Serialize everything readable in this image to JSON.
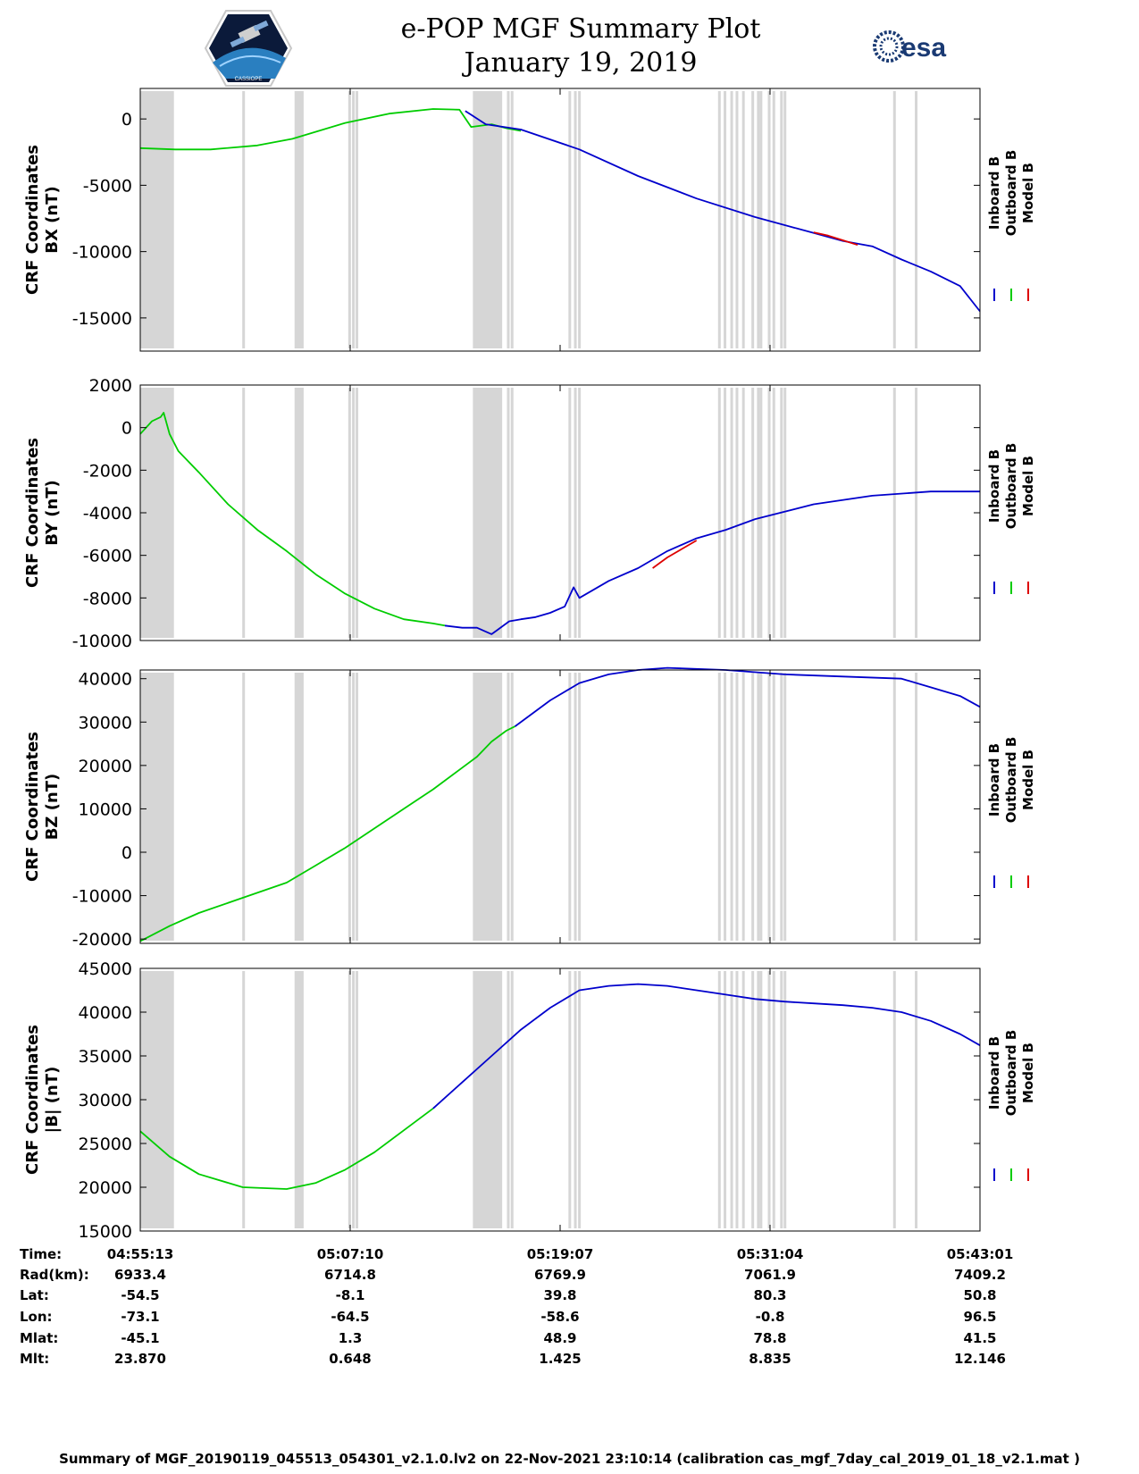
{
  "header": {
    "title": "e-POP MGF Summary Plot",
    "date": "January 19, 2019",
    "logo_left_text": "CASSIOPE",
    "logo_right_text": "esa"
  },
  "colors": {
    "inboard": "#0000cc",
    "outboard": "#00cc00",
    "model": "#dd0000",
    "gap": "#d6d6d6"
  },
  "legend": {
    "inboard": "Inboard B",
    "outboard": "Outboard B",
    "model": "Model B"
  },
  "time_axis": {
    "start": "04:55:13",
    "end": "05:43:01",
    "span_seconds": 2868,
    "ticks_seconds": [
      0,
      717,
      1434,
      2151,
      2868
    ],
    "gap_bands_seconds": [
      [
        0,
        115
      ],
      [
        527,
        558
      ],
      [
        1136,
        1236
      ]
    ],
    "gap_lines_seconds": [
      353,
      715,
      728,
      740,
      1257,
      1270,
      1467,
      1486,
      1500,
      1978,
      1997,
      2020,
      2038,
      2060,
      2092,
      2111,
      2120,
      2148,
      2164,
      2190,
      2202,
      2576,
      2650
    ]
  },
  "chart_data": [
    {
      "type": "line",
      "ylabel": "CRF Coordinates\nBX (nT)",
      "ylim": [
        -17500,
        2300
      ],
      "yticks": [
        0,
        -5000,
        -10000,
        -15000
      ],
      "tick_labels": [
        "0",
        "-5000",
        "-10000",
        "-15000"
      ],
      "series": [
        {
          "name": "Outboard B",
          "x": [
            0,
            120,
            240,
            400,
            520,
            700,
            850,
            1000,
            1090,
            1130,
            1200,
            1250,
            1300
          ],
          "y": [
            -2200,
            -2300,
            -2300,
            -2000,
            -1500,
            -300,
            400,
            750,
            700,
            -600,
            -400,
            -700,
            -900
          ]
        },
        {
          "name": "Inboard B",
          "x": [
            1110,
            1180,
            1300,
            1500,
            1700,
            1900,
            2100,
            2300,
            2400,
            2500,
            2600,
            2700,
            2800,
            2868
          ],
          "y": [
            600,
            -400,
            -800,
            -2300,
            -4300,
            -6000,
            -7400,
            -8600,
            -9200,
            -9600,
            -10600,
            -11500,
            -12600,
            -14500
          ]
        },
        {
          "name": "Model B",
          "x": [
            2300,
            2350,
            2400,
            2450
          ],
          "y": [
            -8550,
            -8800,
            -9150,
            -9500
          ]
        }
      ]
    },
    {
      "type": "line",
      "ylabel": "CRF Coordinates\nBY (nT)",
      "ylim": [
        -10000,
        2000
      ],
      "yticks": [
        2000,
        0,
        -2000,
        -4000,
        -6000,
        -8000,
        -10000
      ],
      "tick_labels": [
        "2000",
        "0",
        "-2000",
        "-4000",
        "-6000",
        "-8000",
        "-10000"
      ],
      "series": [
        {
          "name": "Outboard B",
          "x": [
            0,
            40,
            70,
            80,
            100,
            130,
            200,
            300,
            400,
            500,
            600,
            700,
            800,
            900,
            1000,
            1040
          ],
          "y": [
            -300,
            300,
            500,
            700,
            -300,
            -1100,
            -2100,
            -3600,
            -4800,
            -5800,
            -6900,
            -7800,
            -8500,
            -9000,
            -9200,
            -9300
          ]
        },
        {
          "name": "Inboard B",
          "x": [
            1040,
            1100,
            1150,
            1200,
            1220,
            1260,
            1300,
            1350,
            1400,
            1450,
            1480,
            1500,
            1550,
            1600,
            1700,
            1800,
            1900,
            2000,
            2100,
            2300,
            2500,
            2700,
            2800,
            2868
          ],
          "y": [
            -9300,
            -9400,
            -9400,
            -9700,
            -9500,
            -9100,
            -9000,
            -8900,
            -8700,
            -8400,
            -7500,
            -8000,
            -7600,
            -7200,
            -6600,
            -5800,
            -5200,
            -4800,
            -4300,
            -3600,
            -3200,
            -3000,
            -3000,
            -3000
          ]
        },
        {
          "name": "Model B",
          "x": [
            1750,
            1800,
            1850,
            1900
          ],
          "y": [
            -6600,
            -6100,
            -5700,
            -5300
          ]
        }
      ]
    },
    {
      "type": "line",
      "ylabel": "CRF Coordinates\nBZ (nT)",
      "ylim": [
        -21000,
        42000
      ],
      "yticks": [
        40000,
        30000,
        20000,
        10000,
        0,
        -10000,
        -20000
      ],
      "tick_labels": [
        "40000",
        "30000",
        "20000",
        "10000",
        "0",
        "-10000",
        "-20000"
      ],
      "series": [
        {
          "name": "Outboard B",
          "x": [
            0,
            100,
            200,
            350,
            500,
            600,
            700,
            800,
            900,
            1000,
            1100,
            1150,
            1200,
            1250,
            1280
          ],
          "y": [
            -20500,
            -17000,
            -14000,
            -10500,
            -7000,
            -3000,
            1000,
            5500,
            10000,
            14500,
            19500,
            22000,
            25500,
            28000,
            29000
          ]
        },
        {
          "name": "Inboard B",
          "x": [
            1280,
            1400,
            1500,
            1600,
            1700,
            1800,
            2000,
            2200,
            2400,
            2600,
            2700,
            2800,
            2868
          ],
          "y": [
            29000,
            35000,
            39000,
            41000,
            42000,
            42500,
            42000,
            41000,
            40500,
            40000,
            38000,
            36000,
            33500
          ]
        }
      ]
    },
    {
      "type": "line",
      "ylabel": "CRF Coordinates\n|B| (nT)",
      "ylim": [
        15000,
        45000
      ],
      "yticks": [
        45000,
        40000,
        35000,
        30000,
        25000,
        20000,
        15000
      ],
      "tick_labels": [
        "45000",
        "40000",
        "35000",
        "30000",
        "25000",
        "20000",
        "15000"
      ],
      "series": [
        {
          "name": "Outboard B",
          "x": [
            0,
            100,
            200,
            350,
            500,
            600,
            700,
            800,
            900,
            1000
          ],
          "y": [
            26400,
            23500,
            21500,
            20000,
            19800,
            20500,
            22000,
            24000,
            26500,
            29000
          ]
        },
        {
          "name": "Inboard B",
          "x": [
            1000,
            1100,
            1200,
            1300,
            1400,
            1500,
            1600,
            1700,
            1800,
            1900,
            2000,
            2100,
            2200,
            2300,
            2400,
            2500,
            2600,
            2700,
            2800,
            2868
          ],
          "y": [
            29000,
            32000,
            35000,
            38000,
            40500,
            42500,
            43000,
            43200,
            43000,
            42500,
            42000,
            41500,
            41200,
            41000,
            40800,
            40500,
            40000,
            39000,
            37500,
            36200
          ]
        }
      ]
    }
  ],
  "footer": {
    "labels": [
      "Time:",
      "Rad(km):",
      "Lat:",
      "Lon:",
      "Mlat:",
      "Mlt:"
    ],
    "columns": [
      [
        "04:55:13",
        "6933.4",
        "-54.5",
        "-73.1",
        "-45.1",
        "23.870"
      ],
      [
        "05:07:10",
        "6714.8",
        "-8.1",
        "-64.5",
        "1.3",
        "0.648"
      ],
      [
        "05:19:07",
        "6769.9",
        "39.8",
        "-58.6",
        "48.9",
        "1.425"
      ],
      [
        "05:31:04",
        "7061.9",
        "80.3",
        "-0.8",
        "78.8",
        "8.835"
      ],
      [
        "05:43:01",
        "7409.2",
        "50.8",
        "96.5",
        "41.5",
        "12.146"
      ]
    ],
    "caption": "Summary of MGF_20190119_045513_054301_v2.1.0.lv2 on 22-Nov-2021 23:10:14 (calibration cas_mgf_7day_cal_2019_01_18_v2.1.mat )"
  }
}
